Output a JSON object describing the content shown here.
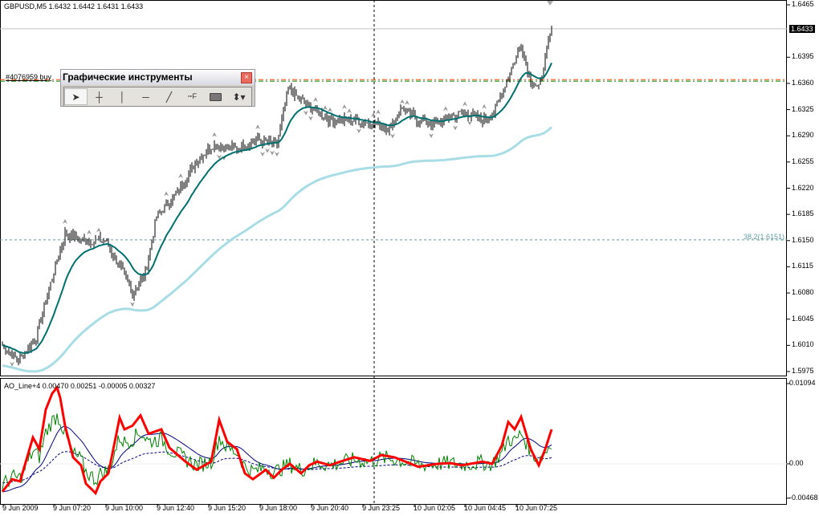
{
  "header": {
    "symbol_info": "GBPUSD,M5  1.6432 1.6442 1.6431 1.6433"
  },
  "price_axis": {
    "ticks": [
      "1.6465",
      "1.6395",
      "1.6360",
      "1.6325",
      "1.6290",
      "1.6255",
      "1.6220",
      "1.6185",
      "1.6150",
      "1.6115",
      "1.6080",
      "1.6045",
      "1.6010",
      "1.5975"
    ],
    "current_price": "1.6433"
  },
  "indicator": {
    "label": "AO_Line+4 0.00470 0.00251 -0.00005 0.00327",
    "ticks": [
      "0.01094",
      "0.00",
      "-0.00468"
    ]
  },
  "time_axis": {
    "ticks": [
      "9 Jun 2009",
      "9 Jun 07:20",
      "9 Jun 10:00",
      "9 Jun 12:40",
      "9 Jun 15:20",
      "9 Jun 18:00",
      "9 Jun 20:40",
      "9 Jun 23:25",
      "10 Jun 02:05",
      "10 Jun 04:45",
      "10 Jun 07:25"
    ]
  },
  "order_line": {
    "label": "#4076959 buy",
    "price": 1.6363
  },
  "fibo": {
    "label": "38.2(1.6151)",
    "price": 1.6151
  },
  "toolbar": {
    "title": "Графические инструменты",
    "close": "×",
    "tools": [
      {
        "name": "cursor-tool",
        "icon": "arrow"
      },
      {
        "name": "crosshair-tool",
        "icon": "crosshair"
      },
      {
        "name": "vertical-line-tool",
        "icon": "vline"
      },
      {
        "name": "horizontal-line-tool",
        "icon": "hline"
      },
      {
        "name": "trendline-tool",
        "icon": "trendline"
      },
      {
        "name": "fibonacci-tool",
        "icon": "fibo"
      },
      {
        "name": "rectangle-tool",
        "icon": "rect"
      },
      {
        "name": "arrows-tool",
        "icon": "arrows"
      }
    ]
  },
  "colors": {
    "ma_fast": "#007070",
    "ma_slow": "#a8dde6",
    "ao_main": "#ff0000",
    "ao_fast": "#008000",
    "ao_signal": "#000080",
    "order_buy": "#008000",
    "order_sl": "#ff4500",
    "fibo": "#5f9ea0"
  },
  "chart_data": {
    "type": "line",
    "price_ylim": [
      1.5975,
      1.6465
    ],
    "indicator_ylim": [
      -0.00468,
      0.01094
    ],
    "price_path_bar_close": [
      [
        0,
        1.601
      ],
      [
        10,
        1.5989
      ],
      [
        21,
        1.6021
      ],
      [
        29,
        1.6085
      ],
      [
        39,
        1.616
      ],
      [
        49,
        1.615
      ],
      [
        64,
        1.615
      ],
      [
        74,
        1.6112
      ],
      [
        81,
        1.608
      ],
      [
        89,
        1.6106
      ],
      [
        96,
        1.6182
      ],
      [
        109,
        1.6214
      ],
      [
        121,
        1.6257
      ],
      [
        131,
        1.6278
      ],
      [
        144,
        1.6273
      ],
      [
        159,
        1.6284
      ],
      [
        171,
        1.6279
      ],
      [
        178,
        1.6353
      ],
      [
        189,
        1.6332
      ],
      [
        204,
        1.6311
      ],
      [
        219,
        1.6311
      ],
      [
        234,
        1.6305
      ],
      [
        241,
        1.63
      ],
      [
        249,
        1.6327
      ],
      [
        259,
        1.6311
      ],
      [
        269,
        1.6305
      ],
      [
        279,
        1.6316
      ],
      [
        289,
        1.6321
      ],
      [
        299,
        1.6311
      ],
      [
        306,
        1.6321
      ],
      [
        314,
        1.6364
      ],
      [
        323,
        1.6412
      ],
      [
        329,
        1.6364
      ],
      [
        334,
        1.6353
      ],
      [
        342,
        1.6434
      ]
    ],
    "ao_path": [
      [
        0,
        -0.0038
      ],
      [
        6,
        -0.0021
      ],
      [
        11,
        -0.0024
      ],
      [
        19,
        0.0036
      ],
      [
        23,
        0.002
      ],
      [
        27,
        0.0074
      ],
      [
        31,
        0.0096
      ],
      [
        34,
        0.0104
      ],
      [
        36,
        0.009
      ],
      [
        39,
        0.0052
      ],
      [
        44,
        0.0009
      ],
      [
        49,
        -0.0002
      ],
      [
        52,
        -0.0027
      ],
      [
        58,
        -0.004
      ],
      [
        61,
        -0.0024
      ],
      [
        66,
        -0.0013
      ],
      [
        73,
        0.0063
      ],
      [
        76,
        0.0047
      ],
      [
        81,
        0.0052
      ],
      [
        86,
        0.0066
      ],
      [
        91,
        0.0041
      ],
      [
        99,
        0.0047
      ],
      [
        104,
        0.0022
      ],
      [
        114,
        0.0003
      ],
      [
        121,
        -0.0008
      ],
      [
        130,
        0.0003
      ],
      [
        135,
        0.006
      ],
      [
        140,
        0.003
      ],
      [
        146,
        0.002
      ],
      [
        151,
        -0.0013
      ],
      [
        156,
        -0.0021
      ],
      [
        164,
        -0.0008
      ],
      [
        169,
        -0.0019
      ],
      [
        174,
        -0.0008
      ],
      [
        179,
        0.0
      ],
      [
        186,
        -0.0013
      ],
      [
        191,
        -0.0002
      ],
      [
        196,
        0.0003
      ],
      [
        204,
        -0.0002
      ],
      [
        209,
        0.0002
      ],
      [
        219,
        0.0009
      ],
      [
        229,
        0.0004
      ],
      [
        236,
        0.0012
      ],
      [
        244,
        0.0009
      ],
      [
        251,
        0.0003
      ],
      [
        259,
        -0.0004
      ],
      [
        271,
        0.0
      ],
      [
        279,
        0.0001
      ],
      [
        286,
        -0.0002
      ],
      [
        294,
        0.0001
      ],
      [
        299,
        0.0003
      ],
      [
        305,
        0.0
      ],
      [
        311,
        0.0025
      ],
      [
        315,
        0.0057
      ],
      [
        319,
        0.0047
      ],
      [
        323,
        0.0064
      ],
      [
        329,
        0.002
      ],
      [
        334,
        -0.0002
      ],
      [
        338,
        0.002
      ],
      [
        342,
        0.0047
      ]
    ]
  }
}
